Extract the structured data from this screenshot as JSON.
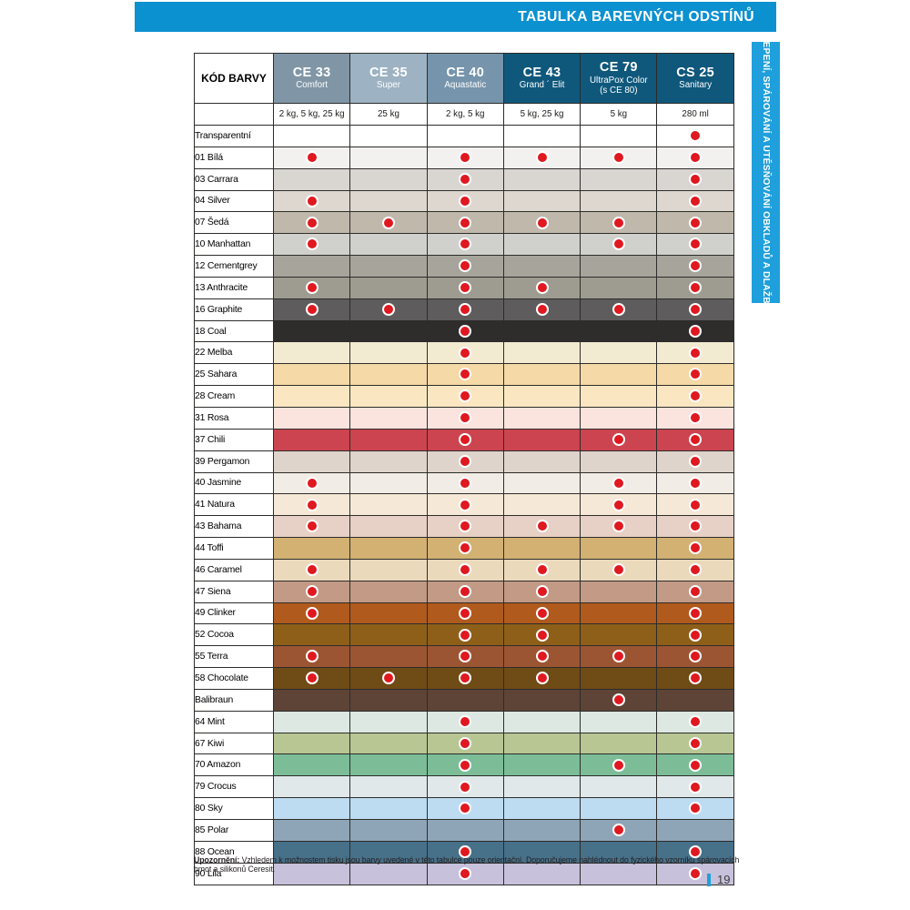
{
  "page": {
    "top_banner": "TABULKA BAREVNÝCH ODSTÍNŮ",
    "side_tab": "LEPENÍ, SPÁROVÁNÍ A UTĚSŇOVÁNÍ OBKLADŮ A DLAŽBY",
    "note_label": "Upozornění:",
    "note_text": " Vzhledem k možnostem tisku jsou barvy uvedené v této tabulce pouze orientační. Doporučujeme nahlédnout do fyzického vzorníku spárovacích hmot a silikonů Ceresit.",
    "page_number": "19",
    "banner_blue": "#0c91d0",
    "tab_blue": "#1f9fdb",
    "dot_red": "#e0181f",
    "grid_color": "#2d2c2a"
  },
  "table": {
    "corner_label": "KÓD BARVY",
    "columns": [
      {
        "code": "CE 33",
        "name": "Comfort",
        "extra": "",
        "sizes": "2 kg, 5 kg, 25 kg",
        "header_bg": "#8096a6"
      },
      {
        "code": "CE 35",
        "name": "Super",
        "extra": "",
        "sizes": "25 kg",
        "header_bg": "#9db2c2"
      },
      {
        "code": "CE 40",
        "name": "Aquastatic",
        "extra": "",
        "sizes": "2 kg, 5 kg",
        "header_bg": "#7694ab"
      },
      {
        "code": "CE 43",
        "name": "Grand ´ Elit",
        "extra": "",
        "sizes": "5 kg, 25 kg",
        "header_bg": "#0f587c"
      },
      {
        "code": "CE 79",
        "name": "UltraPox Color",
        "extra": "(s CE 80)",
        "sizes": "5 kg",
        "header_bg": "#0f587c"
      },
      {
        "code": "CS 25",
        "name": "Sanitary",
        "extra": "",
        "sizes": "280 ml",
        "header_bg": "#0f587c"
      }
    ],
    "rows": [
      {
        "label": "Transparentní",
        "color": "#ffffff",
        "dots": [
          0,
          0,
          0,
          0,
          0,
          1
        ]
      },
      {
        "label": "01 Bílá",
        "color": "#f2f1ef",
        "dots": [
          1,
          0,
          1,
          1,
          1,
          1
        ]
      },
      {
        "label": "03 Carrara",
        "color": "#d9d5d1",
        "dots": [
          0,
          0,
          1,
          0,
          0,
          1
        ]
      },
      {
        "label": "04 Silver",
        "color": "#ddd7d0",
        "dots": [
          1,
          0,
          1,
          0,
          0,
          1
        ]
      },
      {
        "label": "07 Šedá",
        "color": "#bfb8ab",
        "dots": [
          1,
          1,
          1,
          1,
          1,
          1
        ]
      },
      {
        "label": "10 Manhattan",
        "color": "#d0d0cd",
        "dots": [
          1,
          0,
          1,
          0,
          1,
          1
        ]
      },
      {
        "label": "12 Cementgrey",
        "color": "#a7a49c",
        "dots": [
          0,
          0,
          1,
          0,
          0,
          1
        ]
      },
      {
        "label": "13 Anthracite",
        "color": "#9e9c90",
        "dots": [
          1,
          0,
          1,
          1,
          0,
          1
        ]
      },
      {
        "label": "16 Graphite",
        "color": "#5e5c5d",
        "dots": [
          1,
          1,
          1,
          1,
          1,
          1
        ]
      },
      {
        "label": "18 Coal",
        "color": "#2e2d2b",
        "dots": [
          0,
          0,
          1,
          0,
          0,
          1
        ]
      },
      {
        "label": "22 Melba",
        "color": "#f3ead2",
        "dots": [
          0,
          0,
          1,
          0,
          0,
          1
        ]
      },
      {
        "label": "25 Sahara",
        "color": "#f5d9a7",
        "dots": [
          0,
          0,
          1,
          0,
          0,
          1
        ]
      },
      {
        "label": "28 Cream",
        "color": "#fae7c2",
        "dots": [
          0,
          0,
          1,
          0,
          0,
          1
        ]
      },
      {
        "label": "31 Rosa",
        "color": "#fbe3de",
        "dots": [
          0,
          0,
          1,
          0,
          0,
          1
        ]
      },
      {
        "label": "37 Chili",
        "color": "#cb4450",
        "dots": [
          0,
          0,
          1,
          0,
          1,
          1
        ]
      },
      {
        "label": "39 Pergamon",
        "color": "#ded4cb",
        "dots": [
          0,
          0,
          1,
          0,
          0,
          1
        ]
      },
      {
        "label": "40 Jasmine",
        "color": "#f1ece5",
        "dots": [
          1,
          0,
          1,
          0,
          1,
          1
        ]
      },
      {
        "label": "41 Natura",
        "color": "#f5e8d6",
        "dots": [
          1,
          0,
          1,
          0,
          1,
          1
        ]
      },
      {
        "label": "43 Bahama",
        "color": "#e7d0c5",
        "dots": [
          1,
          0,
          1,
          1,
          1,
          1
        ]
      },
      {
        "label": "44 Toffi",
        "color": "#d2b173",
        "dots": [
          0,
          0,
          1,
          0,
          0,
          1
        ]
      },
      {
        "label": "46 Caramel",
        "color": "#ebd9bc",
        "dots": [
          1,
          0,
          1,
          1,
          1,
          1
        ]
      },
      {
        "label": "47 Siena",
        "color": "#c29a85",
        "dots": [
          1,
          0,
          1,
          1,
          0,
          1
        ]
      },
      {
        "label": "49 Clinker",
        "color": "#b05a1d",
        "dots": [
          1,
          0,
          1,
          1,
          0,
          1
        ]
      },
      {
        "label": "52 Cocoa",
        "color": "#8d5f18",
        "dots": [
          0,
          0,
          1,
          1,
          0,
          1
        ]
      },
      {
        "label": "55 Terra",
        "color": "#9c5532",
        "dots": [
          1,
          0,
          1,
          1,
          1,
          1
        ]
      },
      {
        "label": "58 Chocolate",
        "color": "#6f4b15",
        "dots": [
          1,
          1,
          1,
          1,
          0,
          1
        ]
      },
      {
        "label": "Balibraun",
        "color": "#5d4437",
        "dots": [
          0,
          0,
          0,
          0,
          1,
          0
        ]
      },
      {
        "label": "64 Mint",
        "color": "#dce8e1",
        "dots": [
          0,
          0,
          1,
          0,
          0,
          1
        ]
      },
      {
        "label": "67 Kiwi",
        "color": "#b8c694",
        "dots": [
          0,
          0,
          1,
          0,
          0,
          1
        ]
      },
      {
        "label": "70 Amazon",
        "color": "#7cbd98",
        "dots": [
          0,
          0,
          1,
          0,
          1,
          1
        ]
      },
      {
        "label": "79 Crocus",
        "color": "#e0e8e9",
        "dots": [
          0,
          0,
          1,
          0,
          0,
          1
        ]
      },
      {
        "label": "80 Sky",
        "color": "#bddbf1",
        "dots": [
          0,
          0,
          1,
          0,
          0,
          1
        ]
      },
      {
        "label": "85 Polar",
        "color": "#8ea5b7",
        "dots": [
          0,
          0,
          0,
          0,
          1,
          0
        ]
      },
      {
        "label": "88 Ocean",
        "color": "#477089",
        "dots": [
          0,
          0,
          1,
          0,
          0,
          1
        ]
      },
      {
        "label": "90 Lila",
        "color": "#c7c1dc",
        "dots": [
          0,
          0,
          1,
          0,
          0,
          1
        ]
      }
    ]
  }
}
